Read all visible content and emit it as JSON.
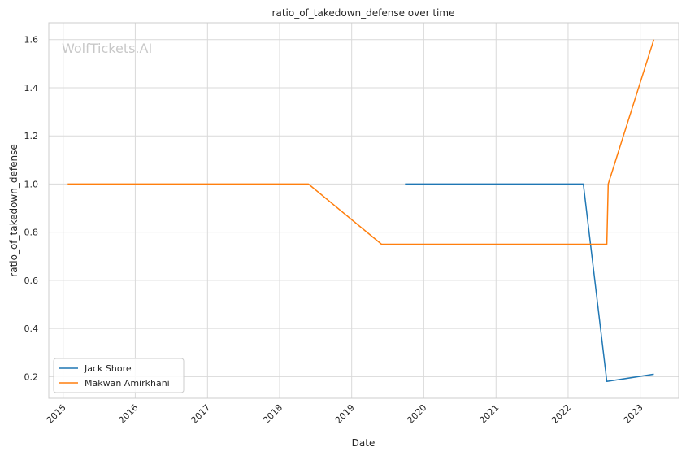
{
  "chart_data": {
    "type": "line",
    "title": "ratio_of_takedown_defense over time",
    "xlabel": "Date",
    "ylabel": "ratio_of_takedown_defense",
    "watermark": "WolfTickets.AI",
    "x_ticks": [
      "2015",
      "2016",
      "2017",
      "2018",
      "2019",
      "2020",
      "2021",
      "2022",
      "2023"
    ],
    "y_ticks": [
      "0.2",
      "0.4",
      "0.6",
      "0.8",
      "1.0",
      "1.2",
      "1.4",
      "1.6"
    ],
    "xlim": [
      "2014-10-20",
      "2023-07-15"
    ],
    "ylim": [
      0.11,
      1.67
    ],
    "grid": true,
    "legend_position": "lower-left",
    "series": [
      {
        "name": "Jack Shore",
        "color": "#1f77b4",
        "points": [
          {
            "x": "2019-09-28",
            "y": 1.0
          },
          {
            "x": "2022-03-19",
            "y": 1.0
          },
          {
            "x": "2022-07-16",
            "y": 0.18
          },
          {
            "x": "2023-03-11",
            "y": 0.21
          }
        ]
      },
      {
        "name": "Makwan Amirkhani",
        "color": "#ff7f0e",
        "points": [
          {
            "x": "2015-01-24",
            "y": 1.0
          },
          {
            "x": "2018-05-27",
            "y": 1.0
          },
          {
            "x": "2019-06-01",
            "y": 0.75
          },
          {
            "x": "2022-07-16",
            "y": 0.75
          },
          {
            "x": "2022-07-23",
            "y": 1.0
          },
          {
            "x": "2023-03-11",
            "y": 1.6
          }
        ]
      }
    ]
  }
}
